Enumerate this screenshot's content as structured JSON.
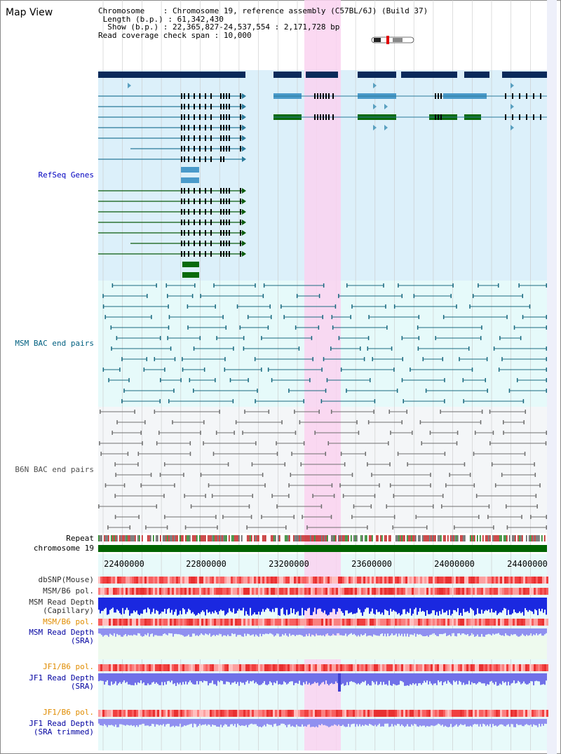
{
  "header": {
    "title": "Map View",
    "chromosome_label": "Chromosome",
    "chromosome_value": "Chromosome 19, reference assembly (C57BL/6J) (Build 37)",
    "length_label": "Length (b.p.)",
    "length_value": "61,342,430",
    "show_label": "Show (b.p.)",
    "show_value": "22,365,827-24,537,554 : 2,171,728 bp",
    "coverage_label": "Read coverage check span",
    "coverage_value": "10,000"
  },
  "tracks": {
    "refseq": "RefSeq Genes",
    "msm_bac": "MSM BAC end pairs",
    "b6n_bac": "B6N BAC end pairs",
    "repeat": "Repeat",
    "chromosome": "chromosome 19",
    "dbsnp": "dbSNP(Mouse)",
    "msm_b6_pol": "MSM/B6 pol.",
    "msm_depth_cap_1": "MSM Read Depth",
    "msm_depth_cap_2": "(Capillary)",
    "msm_b6_pol_sra": "MSM/B6 pol.",
    "msm_depth_sra_1": "MSM Read Depth",
    "msm_depth_sra_2": "(SRA)",
    "jf1_b6_pol": "JF1/B6 pol.",
    "jf1_depth_1": "JF1 Read Depth",
    "jf1_depth_2": "(SRA)",
    "jf1_b6_pol_2": "JF1/B6 pol.",
    "jf1_depth_trim_1": "JF1 Read Depth",
    "jf1_depth_trim_2": "(SRA trimmed)"
  },
  "axis": {
    "ticks": [
      "22400000",
      "22800000",
      "23200000",
      "23600000",
      "24000000",
      "24400000"
    ]
  },
  "colors": {
    "refseq_bg": "#dcf0fa",
    "msm_bg": "#e6fafa",
    "b6n_bg": "#f4f6f8",
    "highlight": "#fad2f0",
    "refseq_label": "#0000c0",
    "msm_label": "#006080",
    "b6n_label": "#505050",
    "orange_label": "#e08c00",
    "blue_label": "#0000a0",
    "chromosome_bar": "#006400"
  }
}
